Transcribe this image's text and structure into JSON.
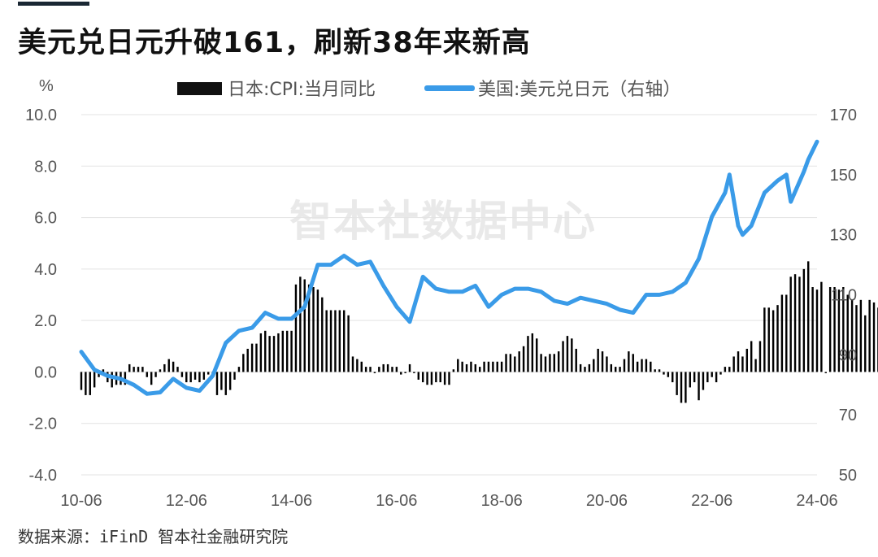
{
  "title": "美元兑日元升破161，刷新38年来新高",
  "source": "数据来源：iFinD 智本社金融研究院",
  "watermark": "智本社数据中心",
  "chart_data": {
    "type": "bar+line",
    "y_left_unit": "%",
    "y_left_ticks": [
      "10.0",
      "8.0",
      "6.0",
      "4.0",
      "2.0",
      "0.0",
      "-2.0",
      "-4.0"
    ],
    "y_left_range": [
      -4,
      10
    ],
    "y_right_ticks": [
      "170",
      "150",
      "130",
      "110",
      "90",
      "70",
      "50"
    ],
    "y_right_range": [
      50,
      170
    ],
    "x_ticks": [
      "10-06",
      "12-06",
      "14-06",
      "16-06",
      "18-06",
      "20-06",
      "22-06",
      "24-06"
    ],
    "x_range": [
      "2010-06",
      "2024-06"
    ],
    "series": [
      {
        "name": "日本:CPI:当月同比",
        "type": "bar",
        "axis": "left",
        "color": "#000000",
        "start": "2010-06",
        "values": [
          -0.7,
          -0.9,
          -0.9,
          -0.6,
          -0.2,
          0.1,
          -0.4,
          -0.6,
          -0.5,
          -0.5,
          -0.5,
          0.3,
          0.2,
          0.2,
          0.2,
          -0.2,
          -0.5,
          -0.2,
          0.1,
          0.3,
          0.5,
          0.4,
          0.2,
          -0.2,
          -0.4,
          -0.4,
          -0.3,
          -0.4,
          -0.3,
          -0.1,
          -0.2,
          -0.9,
          -0.7,
          -0.9,
          -0.7,
          -0.3,
          0.2,
          0.7,
          0.9,
          1.1,
          1.1,
          1.5,
          1.6,
          1.4,
          1.4,
          1.5,
          1.6,
          1.6,
          1.6,
          3.4,
          3.7,
          3.6,
          3.4,
          3.3,
          3.2,
          2.9,
          2.4,
          2.4,
          2.4,
          2.4,
          2.4,
          2.2,
          0.6,
          0.5,
          0.4,
          0.2,
          0.2,
          0.0,
          0.2,
          0.3,
          0.3,
          0.2,
          0.2,
          -0.1,
          0.0,
          0.3,
          0.0,
          -0.3,
          -0.4,
          -0.5,
          -0.5,
          -0.4,
          -0.4,
          -0.5,
          -0.5,
          0.1,
          0.5,
          0.4,
          0.3,
          0.4,
          0.3,
          0.2,
          0.4,
          0.4,
          0.4,
          0.4,
          0.4,
          0.7,
          0.7,
          0.6,
          0.8,
          1.0,
          1.4,
          1.5,
          1.3,
          0.7,
          0.6,
          0.7,
          0.7,
          0.8,
          1.2,
          1.4,
          1.3,
          0.9,
          0.3,
          0.2,
          0.3,
          0.5,
          0.9,
          0.8,
          0.6,
          0.3,
          0.2,
          0.2,
          0.5,
          0.8,
          0.7,
          0.4,
          0.5,
          0.5,
          0.4,
          0.1,
          0.1,
          -0.1,
          -0.2,
          -0.4,
          -0.9,
          -1.2,
          -1.2,
          -0.6,
          -0.4,
          -1.1,
          -0.7,
          -0.4,
          -0.2,
          -0.4,
          -0.1,
          0.2,
          0.2,
          0.6,
          0.8,
          0.6,
          0.9,
          1.2,
          0.5,
          1.2,
          2.5,
          2.5,
          2.4,
          2.6,
          3.0,
          3.0,
          3.7,
          3.8,
          3.7,
          4.0,
          4.3,
          3.3,
          3.2,
          3.5,
          0.0,
          3.3,
          3.3,
          3.2,
          3.3,
          3.0,
          2.8,
          2.6,
          2.8,
          2.2,
          2.8,
          2.7,
          2.5,
          2.8
        ]
      },
      {
        "name": "美国:美元兑日元（右轴）",
        "type": "line",
        "axis": "right",
        "color": "#3a9be8",
        "points": [
          [
            "2010-06",
            91
          ],
          [
            "2010-09",
            85
          ],
          [
            "2010-12",
            83
          ],
          [
            "2011-03",
            82
          ],
          [
            "2011-06",
            80
          ],
          [
            "2011-09",
            77
          ],
          [
            "2011-12",
            77.5
          ],
          [
            "2012-03",
            82
          ],
          [
            "2012-06",
            79
          ],
          [
            "2012-09",
            78
          ],
          [
            "2012-12",
            83
          ],
          [
            "2013-03",
            94
          ],
          [
            "2013-06",
            98
          ],
          [
            "2013-09",
            99
          ],
          [
            "2013-12",
            104
          ],
          [
            "2014-03",
            102
          ],
          [
            "2014-06",
            102
          ],
          [
            "2014-09",
            106
          ],
          [
            "2014-12",
            120
          ],
          [
            "2015-03",
            120
          ],
          [
            "2015-06",
            123
          ],
          [
            "2015-09",
            120
          ],
          [
            "2015-12",
            121
          ],
          [
            "2016-03",
            113
          ],
          [
            "2016-06",
            106
          ],
          [
            "2016-09",
            101
          ],
          [
            "2016-12",
            116
          ],
          [
            "2017-03",
            112
          ],
          [
            "2017-06",
            111
          ],
          [
            "2017-09",
            111
          ],
          [
            "2017-12",
            113
          ],
          [
            "2018-03",
            106
          ],
          [
            "2018-06",
            110
          ],
          [
            "2018-09",
            112
          ],
          [
            "2018-12",
            112
          ],
          [
            "2019-03",
            111
          ],
          [
            "2019-06",
            108
          ],
          [
            "2019-09",
            107
          ],
          [
            "2019-12",
            109
          ],
          [
            "2020-03",
            108
          ],
          [
            "2020-06",
            107
          ],
          [
            "2020-09",
            105
          ],
          [
            "2020-12",
            104
          ],
          [
            "2021-03",
            110
          ],
          [
            "2021-06",
            110
          ],
          [
            "2021-09",
            111
          ],
          [
            "2021-12",
            114
          ],
          [
            "2022-03",
            122
          ],
          [
            "2022-06",
            136
          ],
          [
            "2022-09",
            144
          ],
          [
            "2022-10",
            150
          ],
          [
            "2022-12",
            133
          ],
          [
            "2023-01",
            130
          ],
          [
            "2023-03",
            133
          ],
          [
            "2023-06",
            144
          ],
          [
            "2023-09",
            148
          ],
          [
            "2023-11",
            150
          ],
          [
            "2023-12",
            141
          ],
          [
            "2024-03",
            151
          ],
          [
            "2024-04",
            155
          ],
          [
            "2024-06",
            161
          ]
        ]
      }
    ]
  }
}
